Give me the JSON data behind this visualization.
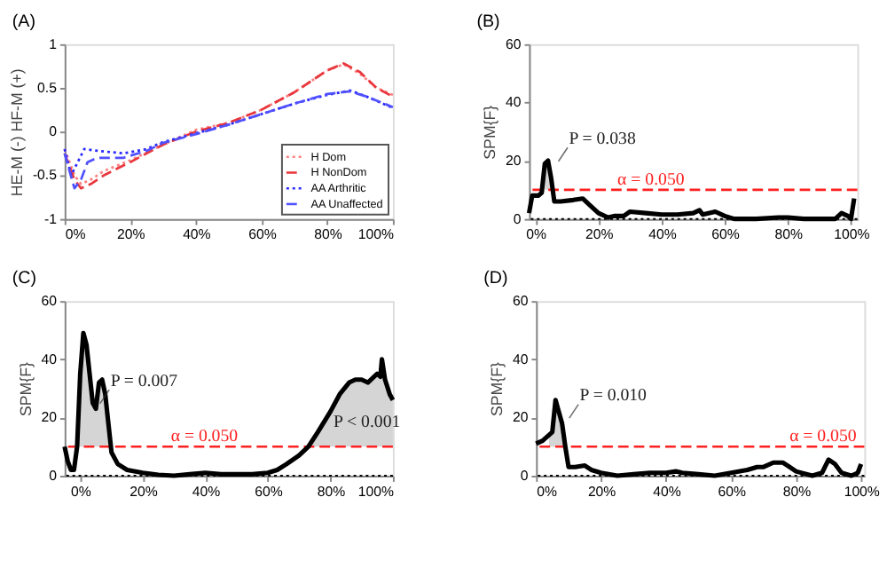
{
  "chart_data": [
    {
      "type": "line",
      "title": "(A)",
      "ylabel": "HE-M (-)      HF-M (+)",
      "legend": "bottom right",
      "marker": "none",
      "xlim": [
        0,
        100
      ],
      "xticks": [
        {
          "value": 0,
          "label": "0%"
        },
        {
          "value": 20,
          "label": "20%"
        },
        {
          "value": 40,
          "label": "40%"
        },
        {
          "value": 60,
          "label": "60%"
        },
        {
          "value": 80,
          "label": "80%"
        },
        {
          "value": 100,
          "label": "100%"
        }
      ],
      "ylim": [
        -1,
        1
      ],
      "yticks": [
        -1,
        -0.5,
        0,
        0.5,
        1
      ],
      "x": [
        0,
        3,
        5,
        8,
        12,
        20,
        30,
        40,
        50,
        60,
        70,
        80,
        85,
        90,
        95,
        100
      ],
      "series": [
        {
          "name": "H Dom",
          "color": "#ff8080",
          "line_style": "dotted",
          "values": [
            -0.2,
            -0.5,
            -0.6,
            -0.55,
            -0.45,
            -0.33,
            -0.15,
            0.02,
            0.1,
            0.25,
            0.45,
            0.7,
            0.77,
            0.66,
            0.5,
            0.42
          ]
        },
        {
          "name": "H NonDom",
          "color": "#e8383d",
          "line_style": "dashed",
          "values": [
            -0.25,
            -0.55,
            -0.65,
            -0.6,
            -0.5,
            -0.35,
            -0.15,
            0,
            0.1,
            0.25,
            0.45,
            0.7,
            0.78,
            0.68,
            0.5,
            0.4
          ]
        },
        {
          "name": "AA Arthritic",
          "color": "#2a2aff",
          "line_style": "dotted",
          "x": [
            0,
            2,
            4,
            6,
            10,
            18,
            25,
            30,
            40,
            50,
            60,
            70,
            80,
            87,
            92,
            100
          ],
          "values": [
            -0.2,
            -0.5,
            -0.35,
            -0.2,
            -0.22,
            -0.25,
            -0.2,
            -0.12,
            -0.02,
            0.08,
            0.2,
            0.32,
            0.42,
            0.47,
            0.4,
            0.27
          ]
        },
        {
          "name": "AA Unaffected",
          "color": "#5050ff",
          "line_style": "dashed",
          "x": [
            0,
            3,
            5,
            7,
            10,
            18,
            25,
            30,
            40,
            50,
            60,
            70,
            80,
            87,
            92,
            100
          ],
          "values": [
            -0.25,
            -0.65,
            -0.55,
            -0.35,
            -0.3,
            -0.3,
            -0.22,
            -0.13,
            -0.03,
            0.08,
            0.2,
            0.32,
            0.43,
            0.46,
            0.4,
            0.28
          ]
        }
      ]
    },
    {
      "type": "line",
      "title": "(B)",
      "ylabel": "SPM{F}",
      "marker": "none",
      "xlim": [
        -2,
        102
      ],
      "xticks": [
        {
          "value": 0,
          "label": "0%"
        },
        {
          "value": 20,
          "label": "20%"
        },
        {
          "value": 40,
          "label": "40%"
        },
        {
          "value": 60,
          "label": "60%"
        },
        {
          "value": 80,
          "label": "80%"
        },
        {
          "value": 100,
          "label": "100%"
        }
      ],
      "ylim": [
        0,
        60
      ],
      "yticks": [
        0,
        20,
        40,
        60
      ],
      "ref_lines": [
        {
          "axis": "y",
          "value": 10,
          "color": "#ff2020",
          "line_style": "dashed"
        },
        {
          "axis": "y",
          "value": 0,
          "color": "#000000",
          "line_style": "dotted"
        }
      ],
      "annotations": [
        {
          "text": "P = 0.038",
          "x": 4,
          "y": 15
        },
        {
          "text": "α = 0.050",
          "x": 26,
          "y": 10
        }
      ],
      "series": [
        {
          "color": "#000000",
          "line_style": "solid",
          "x": [
            -2,
            -1,
            1,
            2,
            3,
            4,
            5,
            6,
            8,
            12,
            15,
            17,
            20,
            23,
            25,
            28,
            30,
            35,
            40,
            45,
            50,
            52,
            53,
            57,
            60,
            63,
            70,
            77,
            80,
            85,
            95,
            97,
            99,
            100,
            101
          ],
          "values": [
            2,
            8,
            8,
            9,
            19,
            20,
            14,
            6,
            6,
            6.5,
            7,
            5,
            2,
            0.5,
            1,
            1,
            2.5,
            2,
            1.5,
            1.5,
            2,
            3,
            1.5,
            2.5,
            1,
            0,
            0,
            0.5,
            0.5,
            0,
            0,
            2,
            1,
            0,
            7
          ],
          "lower": [
            null,
            null,
            null,
            null,
            10,
            10,
            10,
            null,
            null,
            null,
            null,
            null,
            null,
            null,
            null,
            null,
            null,
            null,
            null,
            null,
            null,
            null,
            null,
            null,
            null,
            null,
            null,
            null,
            null,
            null,
            null,
            null,
            null,
            null,
            null
          ],
          "upper": [
            null,
            null,
            null,
            null,
            19,
            20,
            14,
            null,
            null,
            null,
            null,
            null,
            null,
            null,
            null,
            null,
            null,
            null,
            null,
            null,
            null,
            null,
            null,
            null,
            null,
            null,
            null,
            null,
            null,
            null,
            null,
            null,
            null,
            null,
            null
          ]
        }
      ]
    },
    {
      "type": "line",
      "title": "(C)",
      "ylabel": "SPM{F}",
      "marker": "none",
      "xlim": [
        -5,
        100
      ],
      "xticks": [
        {
          "value": 0,
          "label": "0%"
        },
        {
          "value": 20,
          "label": "20%"
        },
        {
          "value": 40,
          "label": "40%"
        },
        {
          "value": 60,
          "label": "60%"
        },
        {
          "value": 80,
          "label": "80%"
        },
        {
          "value": 100,
          "label": "100%"
        }
      ],
      "ylim": [
        0,
        60
      ],
      "yticks": [
        0,
        20,
        40,
        60
      ],
      "ref_lines": [
        {
          "axis": "y",
          "value": 10,
          "color": "#ff2020",
          "line_style": "dashed"
        },
        {
          "axis": "y",
          "value": 0,
          "color": "#000000",
          "line_style": "dotted"
        }
      ],
      "annotations": [
        {
          "text": "P = 0.007",
          "x": 3,
          "y": 20
        },
        {
          "text": "P < 0.001",
          "x": 81,
          "y": 18.6
        },
        {
          "text": "α = 0.050",
          "x": 29,
          "y": 10
        }
      ],
      "series": [
        {
          "color": "#000000",
          "line_style": "solid",
          "x": [
            -5,
            -4,
            -3,
            -2,
            -1,
            0,
            1,
            2,
            3,
            4,
            5,
            6,
            7,
            8,
            9,
            10,
            12,
            15,
            20,
            25,
            30,
            35,
            40,
            45,
            50,
            55,
            60,
            63,
            66,
            70,
            73,
            76,
            80,
            83,
            86,
            88,
            90,
            92,
            94,
            95,
            96,
            96.5,
            97.5,
            99,
            100
          ],
          "values": [
            10,
            5,
            2,
            2,
            10,
            35,
            49,
            45,
            35,
            25,
            23,
            32,
            33,
            28,
            18,
            8,
            4,
            2,
            1,
            0.3,
            0,
            0.5,
            1,
            0.5,
            0.5,
            0.5,
            1,
            2,
            4,
            7,
            10,
            15,
            22,
            28,
            32,
            33,
            33,
            32,
            34,
            35,
            34,
            40,
            33,
            28,
            26
          ],
          "lower": [
            null,
            null,
            null,
            null,
            10,
            10,
            10,
            10,
            10,
            10,
            10,
            10,
            10,
            10,
            10,
            null,
            null,
            null,
            null,
            null,
            null,
            null,
            null,
            null,
            null,
            null,
            null,
            null,
            null,
            null,
            10,
            10,
            10,
            10,
            10,
            10,
            10,
            10,
            10,
            10,
            10,
            10,
            10,
            10,
            10
          ],
          "upper": [
            null,
            null,
            null,
            null,
            10,
            35,
            49,
            45,
            35,
            25,
            23,
            32,
            33,
            28,
            18,
            null,
            null,
            null,
            null,
            null,
            null,
            null,
            null,
            null,
            null,
            null,
            null,
            null,
            null,
            null,
            10,
            15,
            22,
            28,
            32,
            33,
            33,
            32,
            34,
            35,
            34,
            40,
            33,
            28,
            26
          ]
        }
      ]
    },
    {
      "type": "line",
      "title": "(D)",
      "ylabel": "SPM{F}",
      "marker": "none",
      "xlim": [
        0,
        101
      ],
      "xticks": [
        {
          "value": 0,
          "label": "0%"
        },
        {
          "value": 20,
          "label": "20%"
        },
        {
          "value": 40,
          "label": "40%"
        },
        {
          "value": 60,
          "label": "60%"
        },
        {
          "value": 80,
          "label": "80%"
        },
        {
          "value": 100,
          "label": "100%"
        }
      ],
      "ylim": [
        0,
        60
      ],
      "yticks": [
        0,
        20,
        40,
        60
      ],
      "ref_lines": [
        {
          "axis": "y",
          "value": 10,
          "color": "#ff2020",
          "line_style": "dashed"
        },
        {
          "axis": "y",
          "value": 0,
          "color": "#000000",
          "line_style": "dotted"
        }
      ],
      "annotations": [
        {
          "text": "P = 0.010",
          "x": 7,
          "y": 15
        },
        {
          "text": "α = 0.050",
          "x": 78,
          "y": 10
        }
      ],
      "series": [
        {
          "color": "#000000",
          "line_style": "solid",
          "x": [
            0,
            2,
            4,
            5,
            6,
            7,
            8,
            9,
            10,
            12,
            15,
            17,
            20,
            25,
            30,
            35,
            40,
            43,
            45,
            50,
            55,
            60,
            65,
            68,
            70,
            73,
            76,
            78,
            80,
            85,
            88,
            90,
            92,
            94,
            97,
            99,
            100
          ],
          "values": [
            11,
            12,
            14,
            15,
            26,
            22,
            18,
            10,
            3,
            3,
            3.5,
            2,
            1,
            0,
            0.5,
            1,
            1,
            1.5,
            1,
            0.5,
            0,
            1,
            2,
            3,
            3,
            4.5,
            4.5,
            3,
            1.5,
            0,
            1,
            5.5,
            4,
            1,
            0,
            1,
            4
          ],
          "lower": [
            null,
            null,
            10,
            10,
            10,
            10,
            10,
            10,
            null,
            null,
            null,
            null,
            null,
            null,
            null,
            null,
            null,
            null,
            null,
            null,
            null,
            null,
            null,
            null,
            null,
            null,
            null,
            null,
            null,
            null,
            null,
            null,
            null,
            null,
            null,
            null,
            null
          ],
          "upper": [
            null,
            null,
            14,
            15,
            26,
            22,
            18,
            10,
            null,
            null,
            null,
            null,
            null,
            null,
            null,
            null,
            null,
            null,
            null,
            null,
            null,
            null,
            null,
            null,
            null,
            null,
            null,
            null,
            null,
            null,
            null,
            null,
            null,
            null,
            null,
            null,
            null
          ]
        }
      ]
    }
  ]
}
